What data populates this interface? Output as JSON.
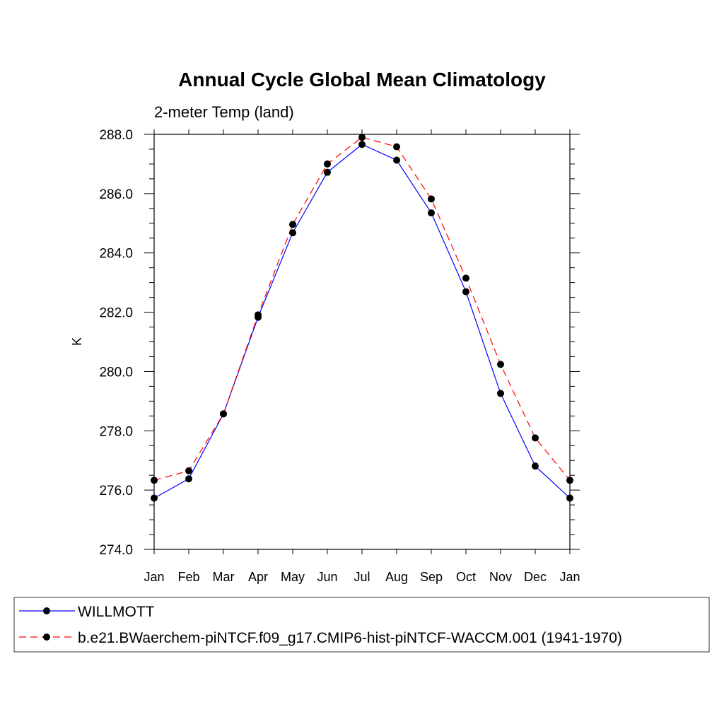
{
  "chart_data": {
    "type": "line",
    "title": "Annual Cycle Global Mean Climatology",
    "subtitle": "2-meter Temp (land)",
    "xlabel": "",
    "ylabel": "K",
    "categories": [
      "Jan",
      "Feb",
      "Mar",
      "Apr",
      "May",
      "Jun",
      "Jul",
      "Aug",
      "Sep",
      "Oct",
      "Nov",
      "Dec",
      "Jan"
    ],
    "ylim": [
      274.0,
      288.0
    ],
    "yticks": [
      "274.0",
      "276.0",
      "278.0",
      "280.0",
      "282.0",
      "284.0",
      "286.0",
      "288.0"
    ],
    "series": [
      {
        "name": "WILLMOTT",
        "color": "#0000ff",
        "style": "solid",
        "values": [
          275.73,
          276.38,
          278.57,
          281.83,
          284.68,
          286.72,
          287.66,
          287.13,
          285.35,
          282.69,
          279.26,
          276.81,
          275.73
        ]
      },
      {
        "name": "b.e21.BWaerchem-piNTCF.f09_g17.CMIP6-hist-piNTCF-WACCM.001 (1941-1970)",
        "color": "#ff0000",
        "style": "dashed",
        "values": [
          276.33,
          276.65,
          278.57,
          281.91,
          284.96,
          287.0,
          287.9,
          287.58,
          285.82,
          283.15,
          280.24,
          277.76,
          276.33
        ]
      }
    ]
  }
}
